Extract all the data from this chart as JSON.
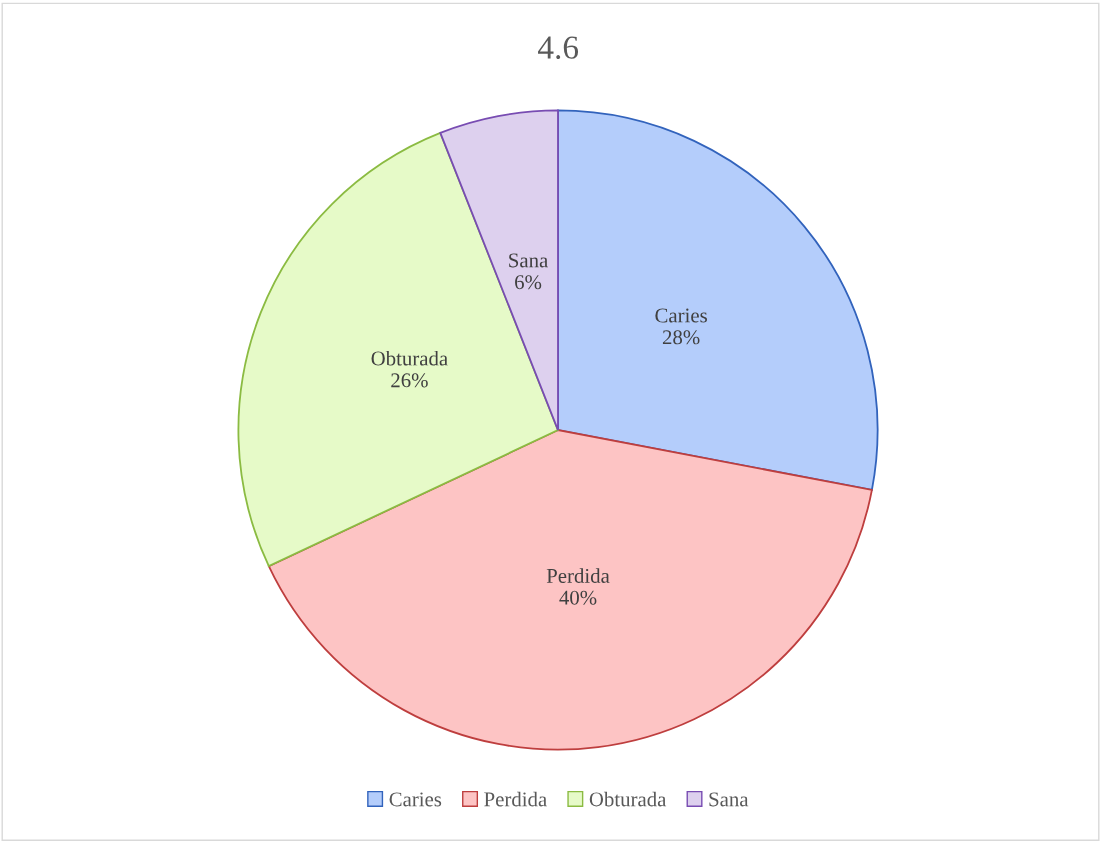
{
  "chart_data": {
    "type": "pie",
    "title": "4.6",
    "categories": [
      "Caries",
      "Perdida",
      "Obturada",
      "Sana"
    ],
    "values": [
      28,
      40,
      26,
      6
    ],
    "colors": [
      "#b4cdfb",
      "#fdc4c4",
      "#e6fac8",
      "#ddd0ee"
    ],
    "value_labels": [
      "28%",
      "40%",
      "26%",
      "6%"
    ],
    "legend": "bottom"
  }
}
